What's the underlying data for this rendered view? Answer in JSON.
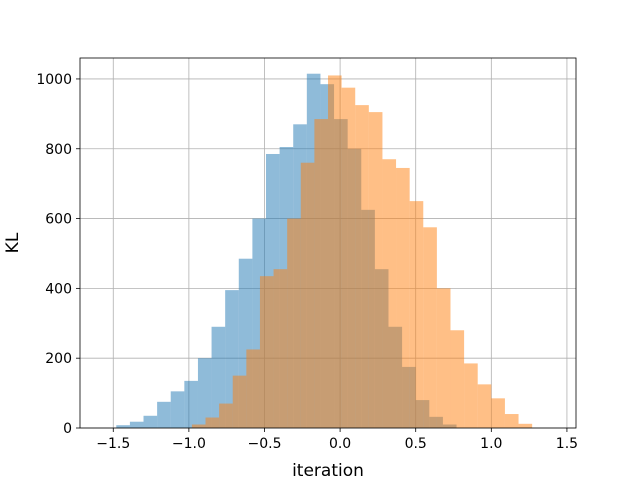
{
  "chart_data": {
    "type": "bar",
    "title": "",
    "xlabel": "iteration",
    "ylabel": "KL",
    "xlim": [
      -1.72,
      1.56
    ],
    "ylim": [
      0,
      1060
    ],
    "xticks": [
      -1.5,
      -1.0,
      -0.5,
      0.0,
      0.5,
      1.0,
      1.5
    ],
    "xtick_labels": [
      "−1.5",
      "−1.0",
      "−0.5",
      "0.0",
      "0.5",
      "1.0",
      "1.5"
    ],
    "yticks": [
      0,
      200,
      400,
      600,
      800,
      1000
    ],
    "ytick_labels": [
      "0",
      "200",
      "400",
      "600",
      "800",
      "1000"
    ],
    "grid": true,
    "legend": "none",
    "series": [
      {
        "color": "#1f77b4",
        "opacity": 0.5,
        "bins": [
          {
            "x0": -1.48,
            "x1": -1.39,
            "value": 8
          },
          {
            "x0": -1.39,
            "x1": -1.3,
            "value": 18
          },
          {
            "x0": -1.3,
            "x1": -1.21,
            "value": 35
          },
          {
            "x0": -1.21,
            "x1": -1.12,
            "value": 75
          },
          {
            "x0": -1.12,
            "x1": -1.03,
            "value": 105
          },
          {
            "x0": -1.03,
            "x1": -0.94,
            "value": 135
          },
          {
            "x0": -0.94,
            "x1": -0.85,
            "value": 200
          },
          {
            "x0": -0.85,
            "x1": -0.76,
            "value": 290
          },
          {
            "x0": -0.76,
            "x1": -0.67,
            "value": 395
          },
          {
            "x0": -0.67,
            "x1": -0.58,
            "value": 485
          },
          {
            "x0": -0.58,
            "x1": -0.49,
            "value": 600
          },
          {
            "x0": -0.49,
            "x1": -0.4,
            "value": 785
          },
          {
            "x0": -0.4,
            "x1": -0.31,
            "value": 805
          },
          {
            "x0": -0.31,
            "x1": -0.22,
            "value": 870
          },
          {
            "x0": -0.22,
            "x1": -0.13,
            "value": 1015
          },
          {
            "x0": -0.13,
            "x1": -0.04,
            "value": 985
          },
          {
            "x0": -0.04,
            "x1": 0.05,
            "value": 885
          },
          {
            "x0": 0.05,
            "x1": 0.14,
            "value": 800
          },
          {
            "x0": 0.14,
            "x1": 0.23,
            "value": 625
          },
          {
            "x0": 0.23,
            "x1": 0.32,
            "value": 455
          },
          {
            "x0": 0.32,
            "x1": 0.41,
            "value": 290
          },
          {
            "x0": 0.41,
            "x1": 0.5,
            "value": 175
          },
          {
            "x0": 0.5,
            "x1": 0.59,
            "value": 80
          },
          {
            "x0": 0.59,
            "x1": 0.68,
            "value": 32
          },
          {
            "x0": 0.68,
            "x1": 0.77,
            "value": 10
          }
        ]
      },
      {
        "color": "#ff7f0e",
        "opacity": 0.5,
        "bins": [
          {
            "x0": -0.98,
            "x1": -0.89,
            "value": 10
          },
          {
            "x0": -0.89,
            "x1": -0.8,
            "value": 30
          },
          {
            "x0": -0.8,
            "x1": -0.71,
            "value": 70
          },
          {
            "x0": -0.71,
            "x1": -0.62,
            "value": 150
          },
          {
            "x0": -0.62,
            "x1": -0.53,
            "value": 225
          },
          {
            "x0": -0.53,
            "x1": -0.44,
            "value": 435
          },
          {
            "x0": -0.44,
            "x1": -0.35,
            "value": 455
          },
          {
            "x0": -0.35,
            "x1": -0.26,
            "value": 600
          },
          {
            "x0": -0.26,
            "x1": -0.17,
            "value": 760
          },
          {
            "x0": -0.17,
            "x1": -0.08,
            "value": 885
          },
          {
            "x0": -0.08,
            "x1": 0.01,
            "value": 1010
          },
          {
            "x0": 0.01,
            "x1": 0.1,
            "value": 975
          },
          {
            "x0": 0.1,
            "x1": 0.19,
            "value": 925
          },
          {
            "x0": 0.19,
            "x1": 0.28,
            "value": 905
          },
          {
            "x0": 0.28,
            "x1": 0.37,
            "value": 770
          },
          {
            "x0": 0.37,
            "x1": 0.46,
            "value": 745
          },
          {
            "x0": 0.46,
            "x1": 0.55,
            "value": 650
          },
          {
            "x0": 0.55,
            "x1": 0.64,
            "value": 575
          },
          {
            "x0": 0.64,
            "x1": 0.73,
            "value": 400
          },
          {
            "x0": 0.73,
            "x1": 0.82,
            "value": 280
          },
          {
            "x0": 0.82,
            "x1": 0.91,
            "value": 185
          },
          {
            "x0": 0.91,
            "x1": 1.0,
            "value": 125
          },
          {
            "x0": 1.0,
            "x1": 1.09,
            "value": 85
          },
          {
            "x0": 1.09,
            "x1": 1.18,
            "value": 40
          },
          {
            "x0": 1.18,
            "x1": 1.27,
            "value": 12
          }
        ]
      }
    ]
  }
}
